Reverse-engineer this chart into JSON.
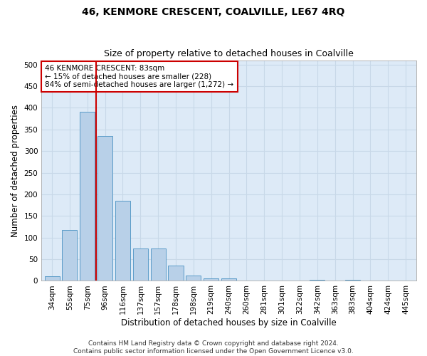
{
  "title": "46, KENMORE CRESCENT, COALVILLE, LE67 4RQ",
  "subtitle": "Size of property relative to detached houses in Coalville",
  "xlabel": "Distribution of detached houses by size in Coalville",
  "ylabel": "Number of detached properties",
  "categories": [
    "34sqm",
    "55sqm",
    "75sqm",
    "96sqm",
    "116sqm",
    "137sqm",
    "157sqm",
    "178sqm",
    "198sqm",
    "219sqm",
    "240sqm",
    "260sqm",
    "281sqm",
    "301sqm",
    "322sqm",
    "342sqm",
    "363sqm",
    "383sqm",
    "404sqm",
    "424sqm",
    "445sqm"
  ],
  "values": [
    10,
    118,
    390,
    335,
    185,
    75,
    75,
    35,
    13,
    5,
    5,
    0,
    0,
    0,
    0,
    2,
    0,
    2,
    0,
    1,
    0
  ],
  "bar_color": "#b8d0e8",
  "bar_edge_color": "#5a9bc8",
  "grid_color": "#c8d8e8",
  "background_color": "#ddeaf7",
  "vline_color": "#cc0000",
  "vline_pos": 2.5,
  "annotation_text": "46 KENMORE CRESCENT: 83sqm\n← 15% of detached houses are smaller (228)\n84% of semi-detached houses are larger (1,272) →",
  "annotation_box_color": "#ffffff",
  "annotation_box_edge_color": "#cc0000",
  "ylim": [
    0,
    510
  ],
  "yticks": [
    0,
    50,
    100,
    150,
    200,
    250,
    300,
    350,
    400,
    450,
    500
  ],
  "footer": "Contains HM Land Registry data © Crown copyright and database right 2024.\nContains public sector information licensed under the Open Government Licence v3.0.",
  "title_fontsize": 10,
  "subtitle_fontsize": 9,
  "xlabel_fontsize": 8.5,
  "ylabel_fontsize": 8.5,
  "tick_fontsize": 7.5,
  "annotation_fontsize": 7.5,
  "footer_fontsize": 6.5
}
